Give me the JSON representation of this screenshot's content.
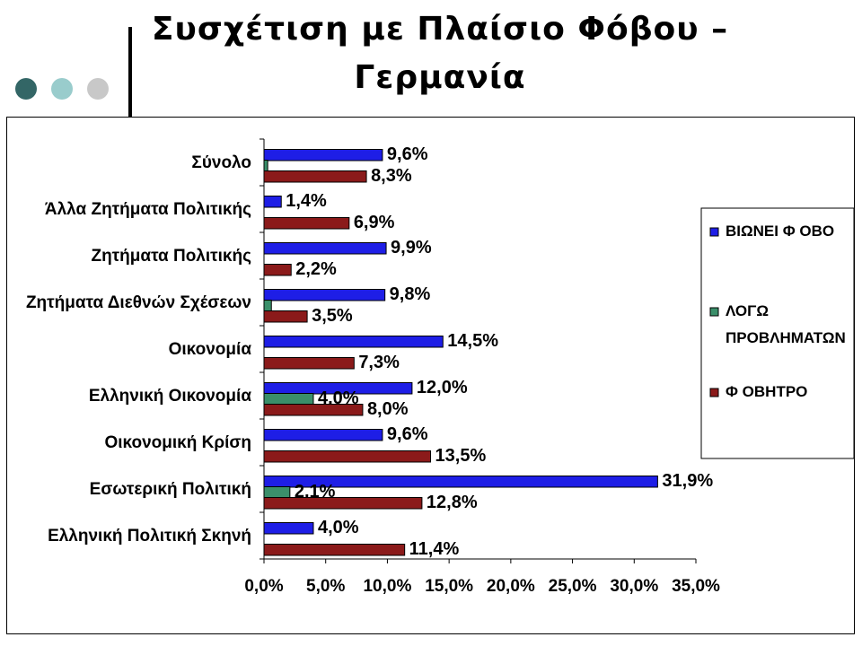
{
  "header": {
    "title_line1": "Συσχέτιση με Πλαίσιο Φόβου –",
    "title_line2": "Γερμανία",
    "dot_colors": [
      "#336666",
      "#99CCCC",
      "#C8C8C8"
    ]
  },
  "chart_data": {
    "type": "bar",
    "orientation": "horizontal",
    "categories": [
      "Σύνολο",
      "Άλλα Ζητήματα Πολιτικής",
      "Ζητήματα Πολιτικής",
      "Ζητήματα Διεθνών Σχέσεων",
      "Οικονομία",
      "Ελληνική Οικονομία",
      "Οικονομική Κρίση",
      "Εσωτερική Πολιτική",
      "Ελληνική Πολιτική Σκηνή"
    ],
    "series": [
      {
        "name": "ΒΙΩΝΕΙ Φ ΟΒΟ",
        "color": "#1E1EE6",
        "values": [
          9.6,
          1.4,
          9.9,
          9.8,
          14.5,
          12.0,
          9.6,
          31.9,
          4.0
        ],
        "labels": [
          "9,6%",
          "1,4%",
          "9,9%",
          "9,8%",
          "14,5%",
          "12,0%",
          "9,6%",
          "31,9%",
          "4,0%"
        ]
      },
      {
        "name": "ΛΟΓΩ ΠΡΟΒΛΗΜΑΤΩΝ",
        "color": "#3A8F6A",
        "values": [
          0.3,
          0,
          0,
          0.6,
          0,
          4.0,
          0,
          2.1,
          0
        ],
        "labels": [
          "",
          "",
          "",
          "",
          "",
          "4,0%",
          "",
          "2,1%",
          ""
        ]
      },
      {
        "name": "Φ ΟΒΗΤΡΟ",
        "color": "#8B1A1A",
        "values": [
          8.3,
          6.9,
          2.2,
          3.5,
          7.3,
          8.0,
          13.5,
          12.8,
          11.4
        ],
        "labels": [
          "8,3%",
          "6,9%",
          "2,2%",
          "3,5%",
          "7,3%",
          "8,0%",
          "13,5%",
          "12,8%",
          "11,4%"
        ]
      }
    ],
    "xlim": [
      0,
      35
    ],
    "x_ticks": [
      "0,0%",
      "5,0%",
      "10,0%",
      "15,0%",
      "20,0%",
      "25,0%",
      "30,0%",
      "35,0%"
    ],
    "legend_lines": [
      [
        "ΒΙΩΝΕΙ Φ ΟΒΟ"
      ],
      [
        "ΛΟΓΩ",
        "ΠΡΟΒΛΗΜΑΤΩΝ"
      ],
      [
        "Φ ΟΒΗΤΡΟ"
      ]
    ],
    "legend_position": "right",
    "grid": false
  }
}
